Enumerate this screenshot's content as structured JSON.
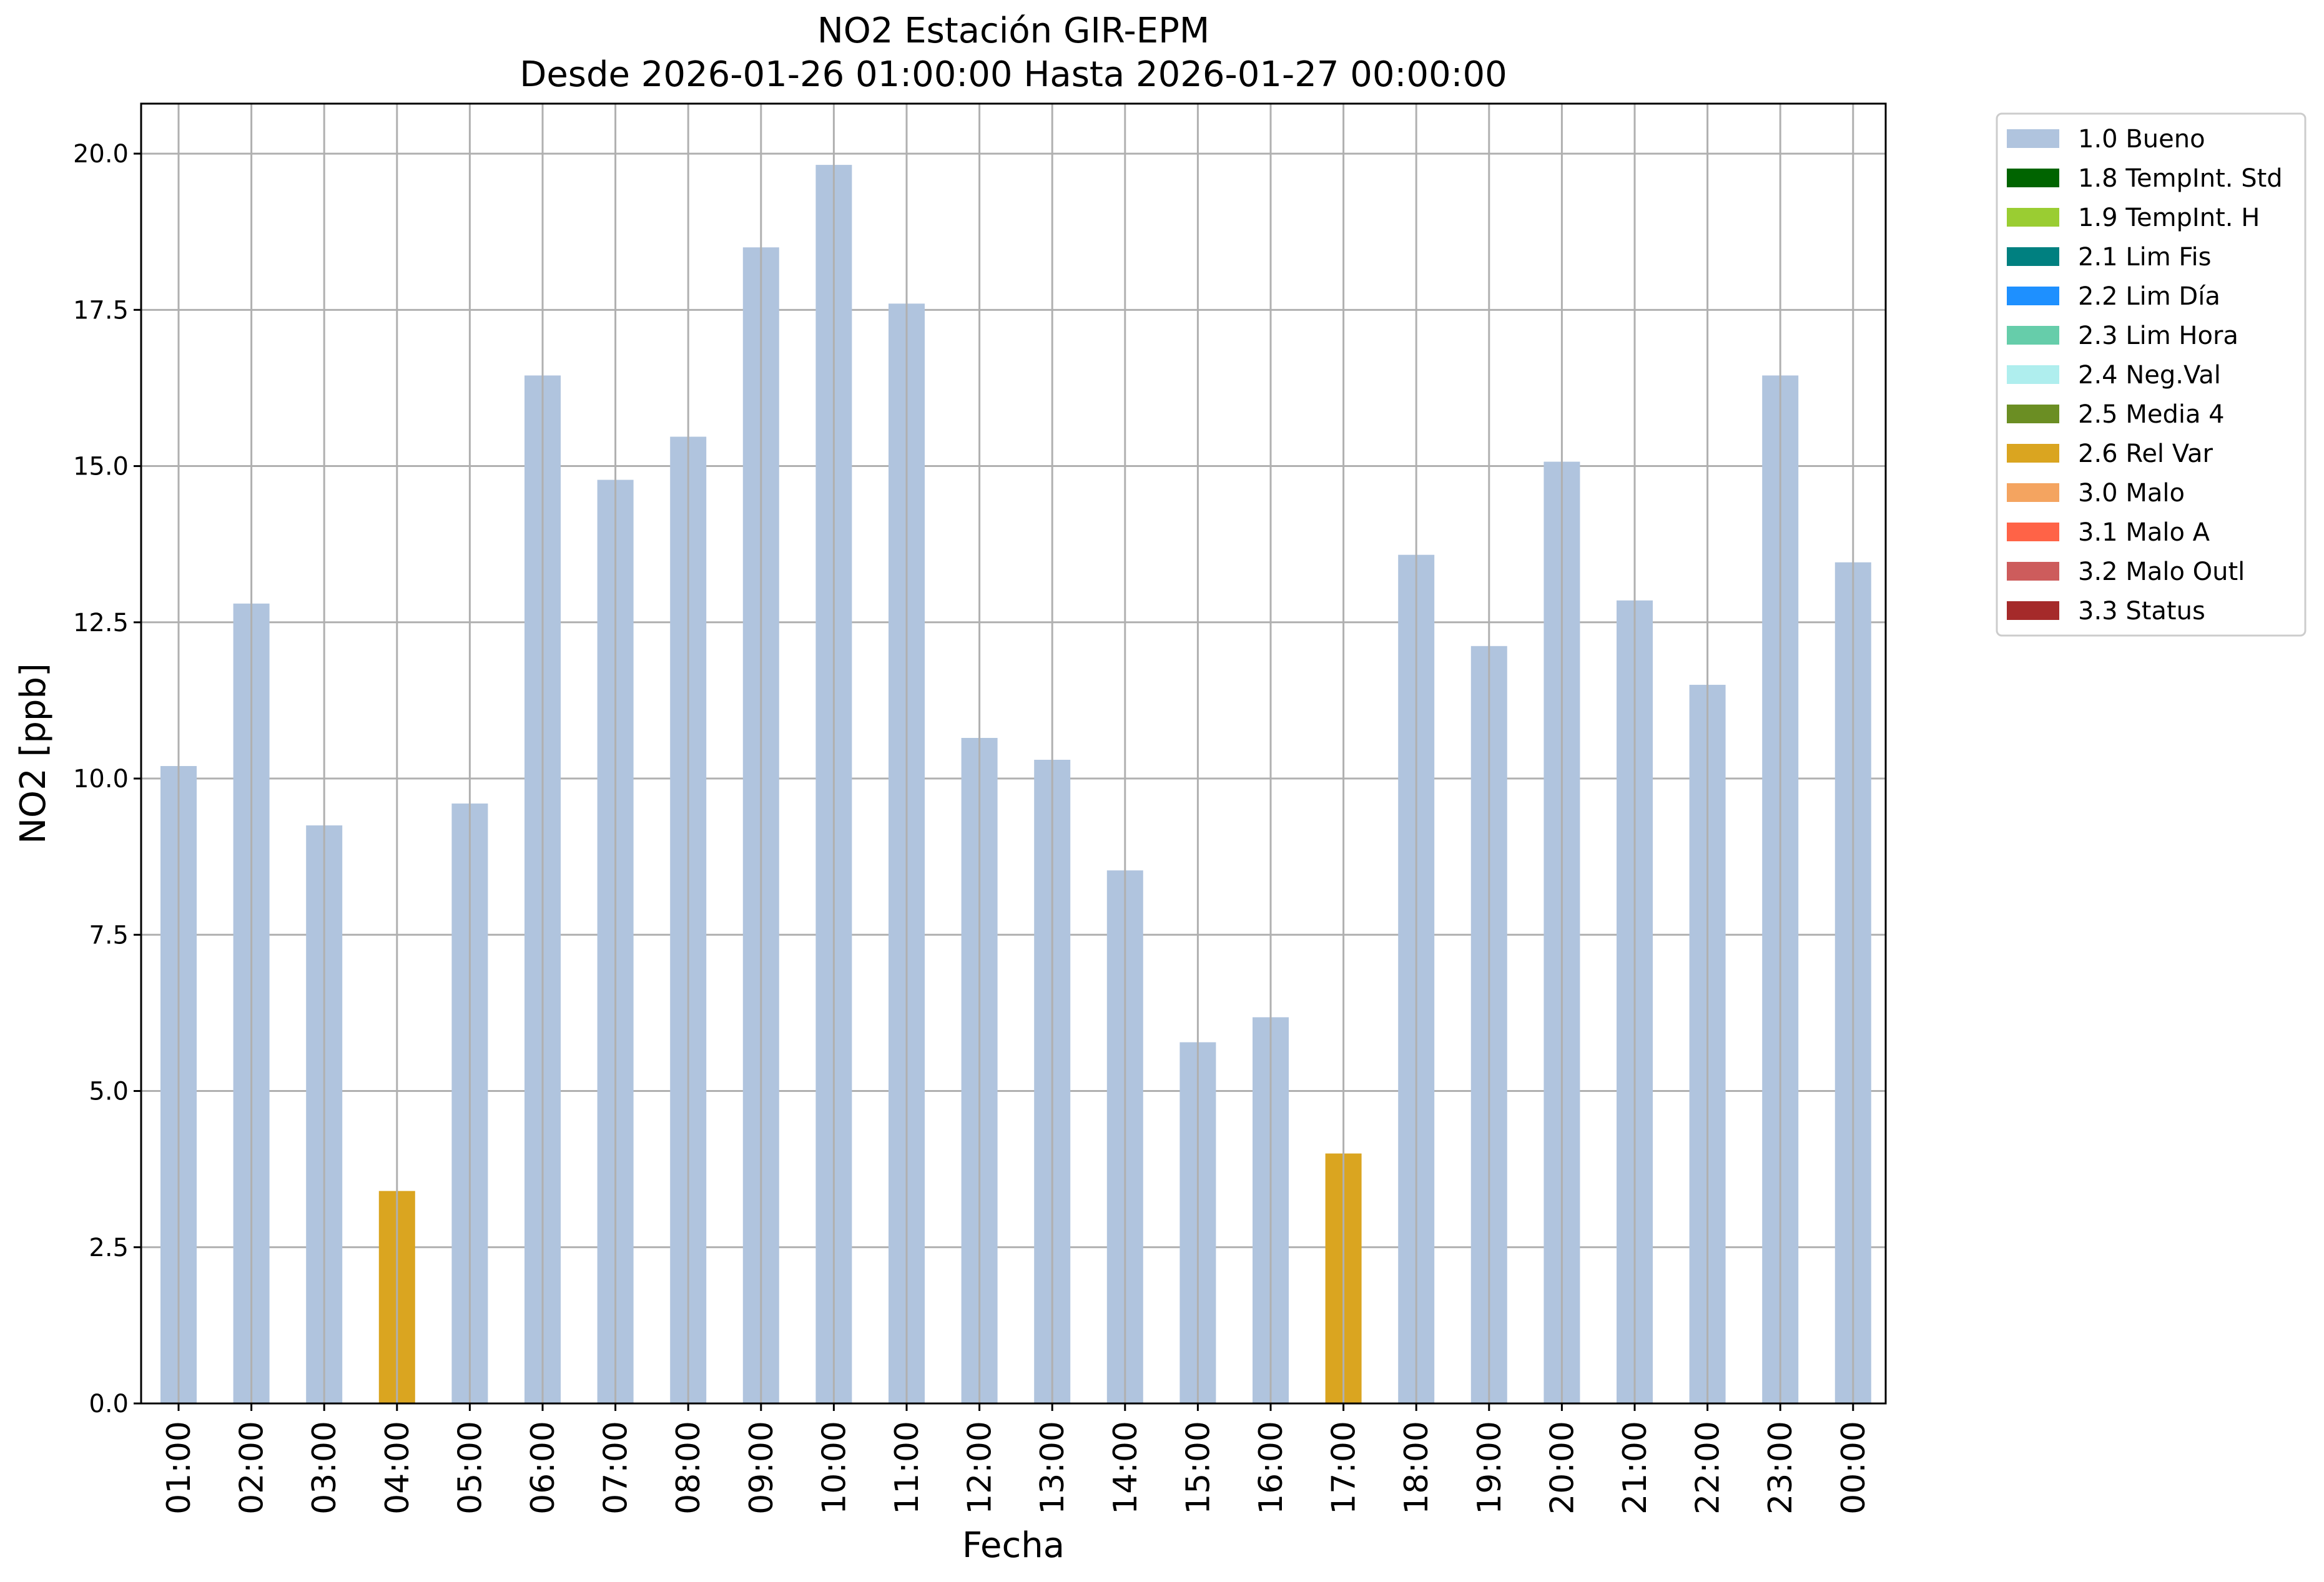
{
  "chart_data": {
    "type": "bar",
    "title": "NO2 Estación GIR-EPM",
    "subtitle": "Desde 2026-01-26 01:00:00 Hasta 2026-01-27 00:00:00",
    "xlabel": "Fecha",
    "ylabel": "NO2 [ppb]",
    "ylim": [
      0,
      20.8
    ],
    "yticks": [
      0.0,
      2.5,
      5.0,
      7.5,
      10.0,
      12.5,
      15.0,
      17.5,
      20.0
    ],
    "ytick_labels": [
      "0.0",
      "2.5",
      "5.0",
      "7.5",
      "10.0",
      "12.5",
      "15.0",
      "17.5",
      "20.0"
    ],
    "grid": true,
    "legend_position": "outside-top-right",
    "categories": [
      "01:00",
      "02:00",
      "03:00",
      "04:00",
      "05:00",
      "06:00",
      "07:00",
      "08:00",
      "09:00",
      "10:00",
      "11:00",
      "12:00",
      "13:00",
      "14:00",
      "15:00",
      "16:00",
      "17:00",
      "18:00",
      "19:00",
      "20:00",
      "21:00",
      "22:00",
      "23:00",
      "00:00"
    ],
    "values": [
      10.2,
      12.8,
      9.25,
      3.4,
      9.6,
      16.45,
      14.78,
      15.47,
      18.5,
      19.82,
      17.6,
      10.65,
      10.3,
      8.53,
      5.78,
      6.18,
      4.0,
      13.58,
      12.12,
      15.07,
      12.85,
      11.5,
      16.45,
      13.46
    ],
    "flags": [
      "1.0 Bueno",
      "1.0 Bueno",
      "1.0 Bueno",
      "2.6 Rel Var",
      "1.0 Bueno",
      "1.0 Bueno",
      "1.0 Bueno",
      "1.0 Bueno",
      "1.0 Bueno",
      "1.0 Bueno",
      "1.0 Bueno",
      "1.0 Bueno",
      "1.0 Bueno",
      "1.0 Bueno",
      "1.0 Bueno",
      "1.0 Bueno",
      "2.6 Rel Var",
      "1.0 Bueno",
      "1.0 Bueno",
      "1.0 Bueno",
      "1.0 Bueno",
      "1.0 Bueno",
      "1.0 Bueno",
      "1.0 Bueno"
    ],
    "legend": [
      {
        "label": "1.0 Bueno",
        "color": "#b0c4de"
      },
      {
        "label": "1.8 TempInt. Std",
        "color": "#006400"
      },
      {
        "label": "1.9 TempInt. H",
        "color": "#9acd32"
      },
      {
        "label": "2.1 Lim Fis",
        "color": "#008080"
      },
      {
        "label": "2.2 Lim Día",
        "color": "#1e90ff"
      },
      {
        "label": "2.3 Lim Hora",
        "color": "#66cdaa"
      },
      {
        "label": "2.4 Neg.Val",
        "color": "#afeeee"
      },
      {
        "label": "2.5 Media 4",
        "color": "#6b8e23"
      },
      {
        "label": "2.6 Rel Var",
        "color": "#daa520"
      },
      {
        "label": "3.0 Malo",
        "color": "#f4a460"
      },
      {
        "label": "3.1 Malo A",
        "color": "#ff6347"
      },
      {
        "label": "3.2 Malo Outl",
        "color": "#cd5c5c"
      },
      {
        "label": "3.3 Status",
        "color": "#a52a2a"
      }
    ]
  }
}
